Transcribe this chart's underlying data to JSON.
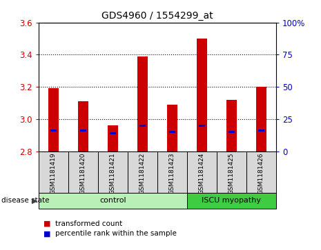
{
  "title": "GDS4960 / 1554299_at",
  "samples": [
    "GSM1181419",
    "GSM1181420",
    "GSM1181421",
    "GSM1181422",
    "GSM1181423",
    "GSM1181424",
    "GSM1181425",
    "GSM1181426"
  ],
  "transformed_counts": [
    3.19,
    3.11,
    2.96,
    3.39,
    3.09,
    3.5,
    3.12,
    3.2
  ],
  "percentile_values": [
    2.93,
    2.93,
    2.91,
    2.96,
    2.92,
    2.96,
    2.92,
    2.93
  ],
  "bar_bottom": 2.8,
  "ylim_left": [
    2.8,
    3.6
  ],
  "ylim_right": [
    0,
    100
  ],
  "yticks_left": [
    2.8,
    3.0,
    3.2,
    3.4,
    3.6
  ],
  "yticks_right": [
    0,
    25,
    50,
    75,
    100
  ],
  "ytick_right_labels": [
    "0",
    "25",
    "50",
    "75",
    "100%"
  ],
  "groups": [
    {
      "label": "control",
      "indices": [
        0,
        1,
        2,
        3,
        4
      ],
      "color": "#b8f0b8"
    },
    {
      "label": "ISCU myopathy",
      "indices": [
        5,
        6,
        7
      ],
      "color": "#40cc40"
    }
  ],
  "bar_color": "#cc0000",
  "percentile_color": "#0000cc",
  "background_color": "#d8d8d8",
  "label_color_left": "#cc0000",
  "label_color_right": "#0000cc",
  "disease_state_label": "disease state",
  "legend_items": [
    {
      "label": "transformed count",
      "color": "#cc0000"
    },
    {
      "label": "percentile rank within the sample",
      "color": "#0000cc"
    }
  ]
}
